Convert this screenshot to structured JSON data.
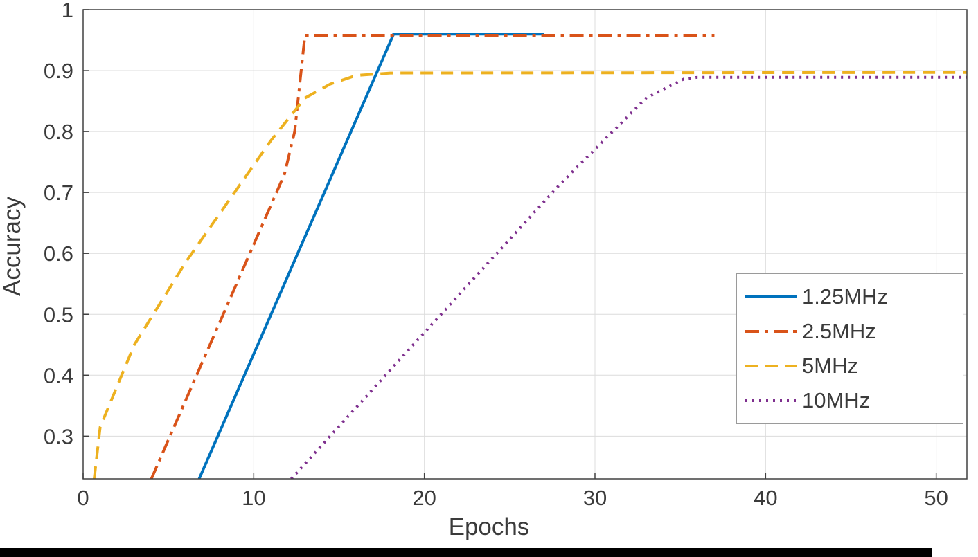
{
  "figure": {
    "background": "#ffffff",
    "bottom_bar_color": "#000000"
  },
  "chart_data": {
    "type": "line",
    "title": "",
    "xlabel": "Epochs",
    "ylabel": "Accuracy",
    "xlim": [
      0,
      51.8
    ],
    "ylim": [
      0.23,
      1.0
    ],
    "x_ticks": [
      0,
      10,
      20,
      30,
      40,
      50
    ],
    "y_ticks": [
      0.3,
      0.4,
      0.5,
      0.6,
      0.7,
      0.8,
      0.9,
      1
    ],
    "grid": true,
    "grid_color": "#dcdcdc",
    "axis_color": "#414141",
    "tick_label_color": "#3b3b3b",
    "tick_font_size": 31,
    "line_width": 4,
    "legend_position": "right-middle",
    "series": [
      {
        "name": "1.25MHz",
        "color": "#0072BD",
        "dash": "solid",
        "points": [
          [
            6.8,
            0.23
          ],
          [
            18.2,
            0.96
          ],
          [
            27,
            0.96
          ]
        ]
      },
      {
        "name": "2.5MHz",
        "color": "#D95319",
        "dash": "dashdot",
        "points": [
          [
            4.0,
            0.23
          ],
          [
            11.8,
            0.73
          ],
          [
            12.4,
            0.8
          ],
          [
            13.0,
            0.958
          ],
          [
            37,
            0.958
          ]
        ]
      },
      {
        "name": "5MHz",
        "color": "#EDB120",
        "dash": "dashed",
        "points": [
          [
            0.65,
            0.23
          ],
          [
            1.0,
            0.315
          ],
          [
            3.0,
            0.45
          ],
          [
            6.0,
            0.585
          ],
          [
            9.0,
            0.705
          ],
          [
            11.0,
            0.785
          ],
          [
            12.0,
            0.82
          ],
          [
            13.0,
            0.855
          ],
          [
            14.5,
            0.878
          ],
          [
            16.0,
            0.892
          ],
          [
            18.0,
            0.896
          ],
          [
            51.8,
            0.897
          ]
        ]
      },
      {
        "name": "10MHz",
        "color": "#7E2F8E",
        "dash": "dotted",
        "points": [
          [
            12.2,
            0.23
          ],
          [
            20.0,
            0.47
          ],
          [
            28.0,
            0.715
          ],
          [
            33.0,
            0.855
          ],
          [
            35.2,
            0.886
          ],
          [
            36.0,
            0.889
          ],
          [
            51.8,
            0.889
          ]
        ]
      }
    ]
  }
}
